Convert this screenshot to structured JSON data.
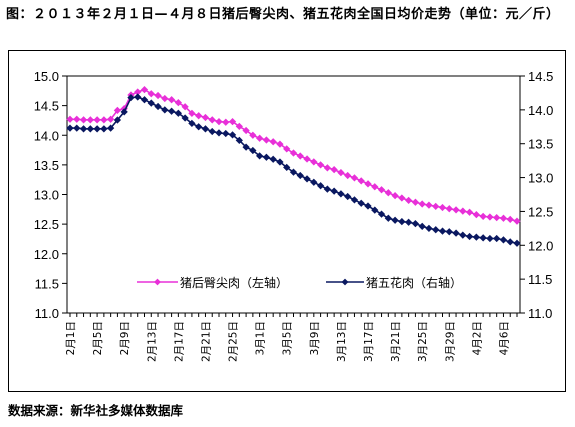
{
  "title": "图：２０１３年２月１日—４月８日猪后臀尖肉、猪五花肉全国日均价走势（单位：元／斤）",
  "source": "数据来源：新华社多媒体数据库",
  "colors": {
    "left_series": "#E830D8",
    "right_series": "#0A1860"
  },
  "chart_data": {
    "type": "line",
    "title": "图：２０１３年２月１日—４月８日猪后臀尖肉、猪五花肉全国日均价走势（单位：元／斤）",
    "x": [
      "2月1日",
      "2月2日",
      "2月3日",
      "2月4日",
      "2月5日",
      "2月6日",
      "2月7日",
      "2月8日",
      "2月9日",
      "2月10日",
      "2月11日",
      "2月12日",
      "2月13日",
      "2月14日",
      "2月15日",
      "2月16日",
      "2月17日",
      "2月18日",
      "2月19日",
      "2月20日",
      "2月21日",
      "2月22日",
      "2月23日",
      "2月24日",
      "2月25日",
      "2月26日",
      "2月27日",
      "2月28日",
      "3月1日",
      "3月2日",
      "3月3日",
      "3月4日",
      "3月5日",
      "3月6日",
      "3月7日",
      "3月8日",
      "3月9日",
      "3月10日",
      "3月11日",
      "3月12日",
      "3月13日",
      "3月14日",
      "3月15日",
      "3月16日",
      "3月17日",
      "3月18日",
      "3月19日",
      "3月20日",
      "3月21日",
      "3月22日",
      "3月23日",
      "3月24日",
      "3月25日",
      "3月26日",
      "3月27日",
      "3月28日",
      "3月29日",
      "3月30日",
      "3月31日",
      "4月1日",
      "4月2日",
      "4月3日",
      "4月4日",
      "4月5日",
      "4月6日",
      "4月7日",
      "4月8日"
    ],
    "x_tick_labels": [
      "2月1日",
      "2月5日",
      "2月9日",
      "2月13日",
      "2月17日",
      "2月21日",
      "2月25日",
      "3月1日",
      "3月5日",
      "3月9日",
      "3月13日",
      "3月17日",
      "3月21日",
      "3月25日",
      "3月29日",
      "4月2日",
      "4月6日"
    ],
    "y_left": {
      "range": [
        11.0,
        15.0
      ],
      "ticks": [
        "11.0",
        "11.5",
        "12.0",
        "12.5",
        "13.0",
        "13.5",
        "14.0",
        "14.5",
        "15.0"
      ]
    },
    "y_right": {
      "range": [
        11.0,
        14.5
      ],
      "ticks": [
        "11.0",
        "11.5",
        "12.0",
        "12.5",
        "13.0",
        "13.5",
        "14.0",
        "14.5"
      ]
    },
    "legend_placement": "bottom-center",
    "series": [
      {
        "name": "猪后臀尖肉（左轴）",
        "axis": "left",
        "marker": "diamond-open",
        "values": [
          14.27,
          14.27,
          14.26,
          14.26,
          14.26,
          14.26,
          14.27,
          14.42,
          14.45,
          14.68,
          14.73,
          14.77,
          14.7,
          14.67,
          14.62,
          14.6,
          14.55,
          14.48,
          14.37,
          14.33,
          14.3,
          14.26,
          14.23,
          14.22,
          14.23,
          14.15,
          14.08,
          14.0,
          13.95,
          13.92,
          13.89,
          13.85,
          13.77,
          13.7,
          13.65,
          13.6,
          13.55,
          13.5,
          13.45,
          13.42,
          13.37,
          13.32,
          13.28,
          13.23,
          13.18,
          13.13,
          13.08,
          13.03,
          12.98,
          12.94,
          12.9,
          12.87,
          12.84,
          12.82,
          12.8,
          12.78,
          12.76,
          12.74,
          12.72,
          12.7,
          12.66,
          12.63,
          12.62,
          12.61,
          12.6,
          12.58,
          12.55
        ]
      },
      {
        "name": "猪五花肉（右轴）",
        "axis": "right",
        "marker": "diamond-filled",
        "values": [
          13.73,
          13.73,
          13.72,
          13.72,
          13.72,
          13.72,
          13.73,
          13.85,
          13.97,
          14.18,
          14.19,
          14.15,
          14.1,
          14.05,
          14.0,
          13.98,
          13.95,
          13.88,
          13.8,
          13.75,
          13.72,
          13.68,
          13.66,
          13.65,
          13.63,
          13.55,
          13.45,
          13.4,
          13.32,
          13.3,
          13.27,
          13.23,
          13.15,
          13.08,
          13.03,
          12.98,
          12.93,
          12.88,
          12.83,
          12.8,
          12.76,
          12.72,
          12.67,
          12.62,
          12.58,
          12.52,
          12.46,
          12.4,
          12.37,
          12.35,
          12.34,
          12.32,
          12.28,
          12.25,
          12.23,
          12.21,
          12.2,
          12.18,
          12.15,
          12.13,
          12.12,
          12.11,
          12.1,
          12.1,
          12.08,
          12.05,
          12.03
        ]
      }
    ]
  }
}
